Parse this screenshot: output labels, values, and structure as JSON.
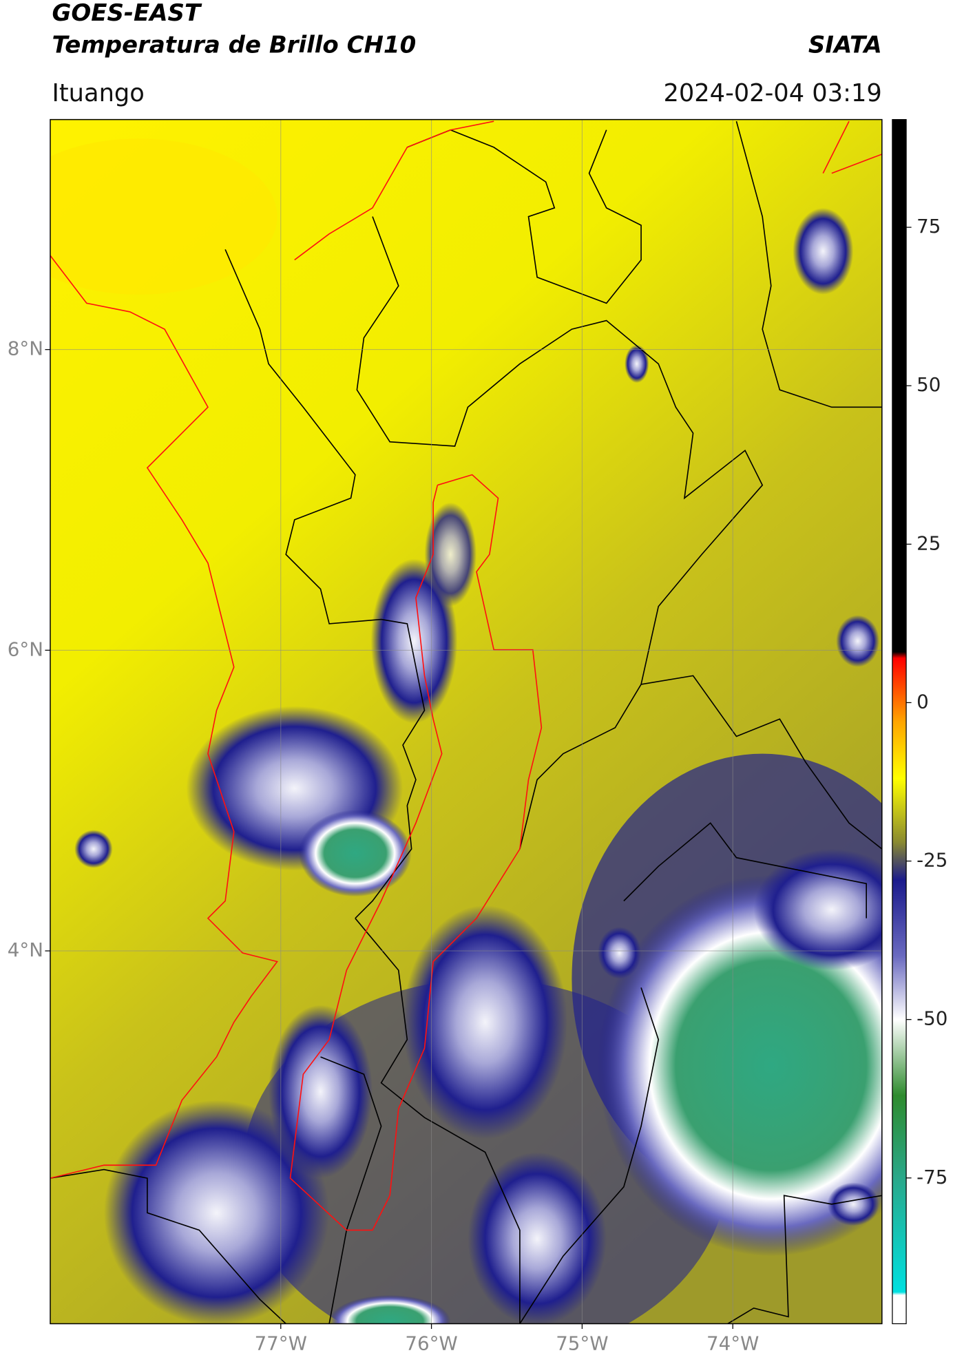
{
  "chart_data": {
    "type": "map",
    "title": "GOES-EAST",
    "subtitle": "Temperatura de Brillo CH10",
    "source": "SIATA",
    "location": "Ituango",
    "timestamp": "2024-02-04 03:19",
    "xlim": [
      -78.53,
      -73.01
    ],
    "ylim": [
      1.52,
      9.53
    ],
    "xticks": [
      {
        "value": -77,
        "label": "77°W"
      },
      {
        "value": -76,
        "label": "76°W"
      },
      {
        "value": -75,
        "label": "75°W"
      },
      {
        "value": -74,
        "label": "74°W"
      }
    ],
    "yticks": [
      {
        "value": 4,
        "label": "4°N"
      },
      {
        "value": 6,
        "label": "6°N"
      },
      {
        "value": 8,
        "label": "8°N"
      }
    ],
    "grid": true,
    "colorbar": {
      "lim": [
        -98,
        92
      ],
      "ticks": [
        -75,
        -50,
        -25,
        0,
        25,
        50,
        75
      ],
      "stops": [
        {
          "value": -98,
          "color": "#ffffff"
        },
        {
          "value": -93.5,
          "color": "#ffffff"
        },
        {
          "value": -93,
          "color": "#00e0e0"
        },
        {
          "value": -75,
          "color": "#2aa88a"
        },
        {
          "value": -62,
          "color": "#2e8b2e"
        },
        {
          "value": -50,
          "color": "#ffffff"
        },
        {
          "value": -40,
          "color": "#6a6ac0"
        },
        {
          "value": -28,
          "color": "#1a1a8c"
        },
        {
          "value": -22,
          "color": "#8a8a30"
        },
        {
          "value": -12,
          "color": "#ffff00"
        },
        {
          "value": -3,
          "color": "#ffa500"
        },
        {
          "value": 7,
          "color": "#ff0000"
        },
        {
          "value": 8,
          "color": "#000000"
        },
        {
          "value": 92,
          "color": "#000000"
        }
      ]
    }
  }
}
